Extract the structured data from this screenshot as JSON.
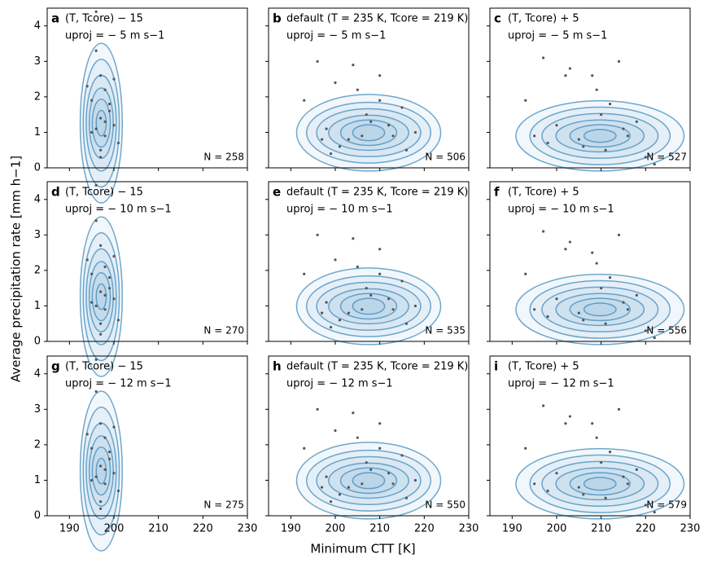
{
  "figure": {
    "xlabel": "Minimum CTT [K]",
    "ylabel": "Average precipitation rate [mm h−1]"
  },
  "chart_data": [
    {
      "type": "scatter",
      "label": "a",
      "line1": "(T, Tcore) − 15",
      "line2": "uproj = − 5 m s−1",
      "n_label": "N = 258",
      "color": "#555555",
      "x": [
        196,
        197,
        198,
        195,
        199,
        197,
        200,
        196,
        198,
        194,
        201,
        197,
        199,
        196,
        198,
        195,
        200,
        197
      ],
      "y": [
        3.3,
        2.6,
        2.2,
        1.9,
        1.6,
        1.4,
        1.2,
        1.1,
        0.9,
        2.3,
        0.7,
        0.5,
        1.8,
        4.4,
        1.3,
        1.0,
        2.5,
        0.3
      ],
      "xlim": [
        185,
        230
      ],
      "ylim": [
        0,
        4.5
      ],
      "xticks": [
        190,
        200,
        210,
        220,
        230
      ],
      "yticks": [
        0,
        1,
        2,
        3,
        4
      ]
    },
    {
      "type": "scatter",
      "label": "b",
      "line1": "default (T = 235 K, Tcore = 219 K)",
      "line2": "uproj = − 5 m s−1",
      "n_label": "N = 506",
      "color": "#555555",
      "x": [
        196,
        200,
        205,
        210,
        215,
        198,
        203,
        208,
        213,
        218,
        193,
        201,
        207,
        212,
        216,
        197,
        204,
        210,
        199,
        206
      ],
      "y": [
        3.0,
        2.4,
        2.2,
        1.9,
        1.7,
        1.1,
        0.8,
        1.3,
        0.9,
        1.0,
        1.9,
        0.6,
        1.5,
        1.2,
        0.5,
        0.8,
        2.9,
        2.6,
        0.4,
        0.9
      ],
      "xlim": [
        185,
        230
      ],
      "ylim": [
        0,
        4.5
      ],
      "xticks": [
        190,
        200,
        210,
        220,
        230
      ],
      "yticks": [
        0,
        1,
        2,
        3,
        4
      ]
    },
    {
      "type": "scatter",
      "label": "c",
      "line1": "(T, Tcore) + 5",
      "line2": "uproj = − 5 m s−1",
      "n_label": "N = 527",
      "color": "#555555",
      "x": [
        197,
        203,
        208,
        214,
        200,
        205,
        210,
        216,
        220,
        193,
        198,
        212,
        218,
        222,
        206,
        202,
        209,
        215,
        195,
        211
      ],
      "y": [
        3.1,
        2.8,
        2.6,
        3.0,
        1.2,
        0.8,
        1.5,
        0.9,
        0.3,
        1.9,
        0.7,
        1.8,
        1.3,
        0.1,
        0.6,
        2.6,
        2.2,
        1.1,
        0.9,
        0.5
      ],
      "xlim": [
        185,
        230
      ],
      "ylim": [
        0,
        4.5
      ],
      "xticks": [
        190,
        200,
        210,
        220,
        230
      ],
      "yticks": [
        0,
        1,
        2,
        3,
        4
      ]
    },
    {
      "type": "scatter",
      "label": "d",
      "line1": "(T, Tcore) − 15",
      "line2": "uproj = − 10 m s−1",
      "n_label": "N = 270",
      "color": "#555555",
      "x": [
        196,
        197,
        198,
        195,
        199,
        197,
        200,
        196,
        198,
        194,
        201,
        197,
        199,
        196,
        198,
        195,
        200,
        197
      ],
      "y": [
        3.4,
        2.7,
        2.1,
        1.9,
        1.5,
        1.4,
        1.2,
        1.0,
        0.9,
        2.3,
        0.6,
        0.5,
        1.8,
        4.4,
        1.3,
        1.1,
        2.4,
        0.2
      ],
      "xlim": [
        185,
        230
      ],
      "ylim": [
        0,
        4.5
      ],
      "xticks": [
        190,
        200,
        210,
        220,
        230
      ],
      "yticks": [
        0,
        1,
        2,
        3,
        4
      ]
    },
    {
      "type": "scatter",
      "label": "e",
      "line1": "default (T = 235 K, Tcore = 219 K)",
      "line2": "uproj = − 10 m s−1",
      "n_label": "N = 535",
      "color": "#555555",
      "x": [
        196,
        200,
        205,
        210,
        215,
        198,
        203,
        208,
        213,
        218,
        193,
        201,
        207,
        212,
        216,
        197,
        204,
        210,
        199,
        206
      ],
      "y": [
        3.0,
        2.3,
        2.1,
        1.9,
        1.7,
        1.1,
        0.8,
        1.3,
        0.9,
        1.0,
        1.9,
        0.6,
        1.5,
        1.2,
        0.5,
        0.8,
        2.9,
        2.6,
        0.4,
        0.9
      ],
      "xlim": [
        185,
        230
      ],
      "ylim": [
        0,
        4.5
      ],
      "xticks": [
        190,
        200,
        210,
        220,
        230
      ],
      "yticks": [
        0,
        1,
        2,
        3,
        4
      ]
    },
    {
      "type": "scatter",
      "label": "f",
      "line1": "(T, Tcore) + 5",
      "line2": "uproj = − 10 m s−1",
      "n_label": "N = 556",
      "color": "#555555",
      "x": [
        197,
        203,
        208,
        214,
        200,
        205,
        210,
        216,
        220,
        193,
        198,
        212,
        218,
        222,
        206,
        202,
        209,
        215,
        195,
        211
      ],
      "y": [
        3.1,
        2.8,
        2.5,
        3.0,
        1.2,
        0.8,
        1.5,
        0.9,
        0.3,
        1.9,
        0.7,
        1.8,
        1.3,
        0.1,
        0.6,
        2.6,
        2.2,
        1.1,
        0.9,
        0.5
      ],
      "xlim": [
        185,
        230
      ],
      "ylim": [
        0,
        4.5
      ],
      "xticks": [
        190,
        200,
        210,
        220,
        230
      ],
      "yticks": [
        0,
        1,
        2,
        3,
        4
      ]
    },
    {
      "type": "scatter",
      "label": "g",
      "line1": "(T, Tcore) − 15",
      "line2": "uproj = − 12 m s−1",
      "n_label": "N = 275",
      "color": "#555555",
      "x": [
        196,
        197,
        198,
        195,
        199,
        197,
        200,
        196,
        198,
        194,
        201,
        197,
        199,
        196,
        198,
        195,
        200,
        197
      ],
      "y": [
        3.5,
        2.6,
        2.2,
        1.9,
        1.6,
        1.4,
        1.2,
        1.1,
        0.9,
        2.3,
        0.7,
        0.4,
        1.8,
        4.4,
        1.3,
        1.0,
        2.5,
        0.2
      ],
      "xlim": [
        185,
        230
      ],
      "ylim": [
        0,
        4.5
      ],
      "xticks": [
        190,
        200,
        210,
        220,
        230
      ],
      "yticks": [
        0,
        1,
        2,
        3,
        4
      ]
    },
    {
      "type": "scatter",
      "label": "h",
      "line1": "default (T = 235 K, Tcore = 219 K)",
      "line2": "uproj = − 12 m s−1",
      "n_label": "N = 550",
      "color": "#555555",
      "x": [
        196,
        200,
        205,
        210,
        215,
        198,
        203,
        208,
        213,
        218,
        193,
        201,
        207,
        212,
        216,
        197,
        204,
        210,
        199,
        206
      ],
      "y": [
        3.0,
        2.4,
        2.2,
        1.9,
        1.7,
        1.1,
        0.8,
        1.3,
        0.9,
        1.0,
        1.9,
        0.6,
        1.5,
        1.2,
        0.5,
        0.8,
        2.9,
        2.6,
        0.4,
        0.9
      ],
      "xlim": [
        185,
        230
      ],
      "ylim": [
        0,
        4.5
      ],
      "xticks": [
        190,
        200,
        210,
        220,
        230
      ],
      "yticks": [
        0,
        1,
        2,
        3,
        4
      ]
    },
    {
      "type": "scatter",
      "label": "i",
      "line1": "(T, Tcore) + 5",
      "line2": "uproj = − 12 m s−1",
      "n_label": "N = 579",
      "color": "#555555",
      "x": [
        197,
        203,
        208,
        214,
        200,
        205,
        210,
        216,
        220,
        193,
        198,
        212,
        218,
        222,
        206,
        202,
        209,
        215,
        195,
        211
      ],
      "y": [
        3.1,
        2.8,
        2.6,
        3.0,
        1.2,
        0.8,
        1.5,
        0.9,
        0.3,
        1.9,
        0.7,
        1.8,
        1.3,
        0.1,
        0.6,
        2.6,
        2.2,
        1.1,
        0.9,
        0.5
      ],
      "xlim": [
        185,
        230
      ],
      "ylim": [
        0,
        4.5
      ],
      "xticks": [
        190,
        200,
        210,
        220,
        230
      ],
      "yticks": [
        0,
        1,
        2,
        3,
        4
      ]
    }
  ]
}
